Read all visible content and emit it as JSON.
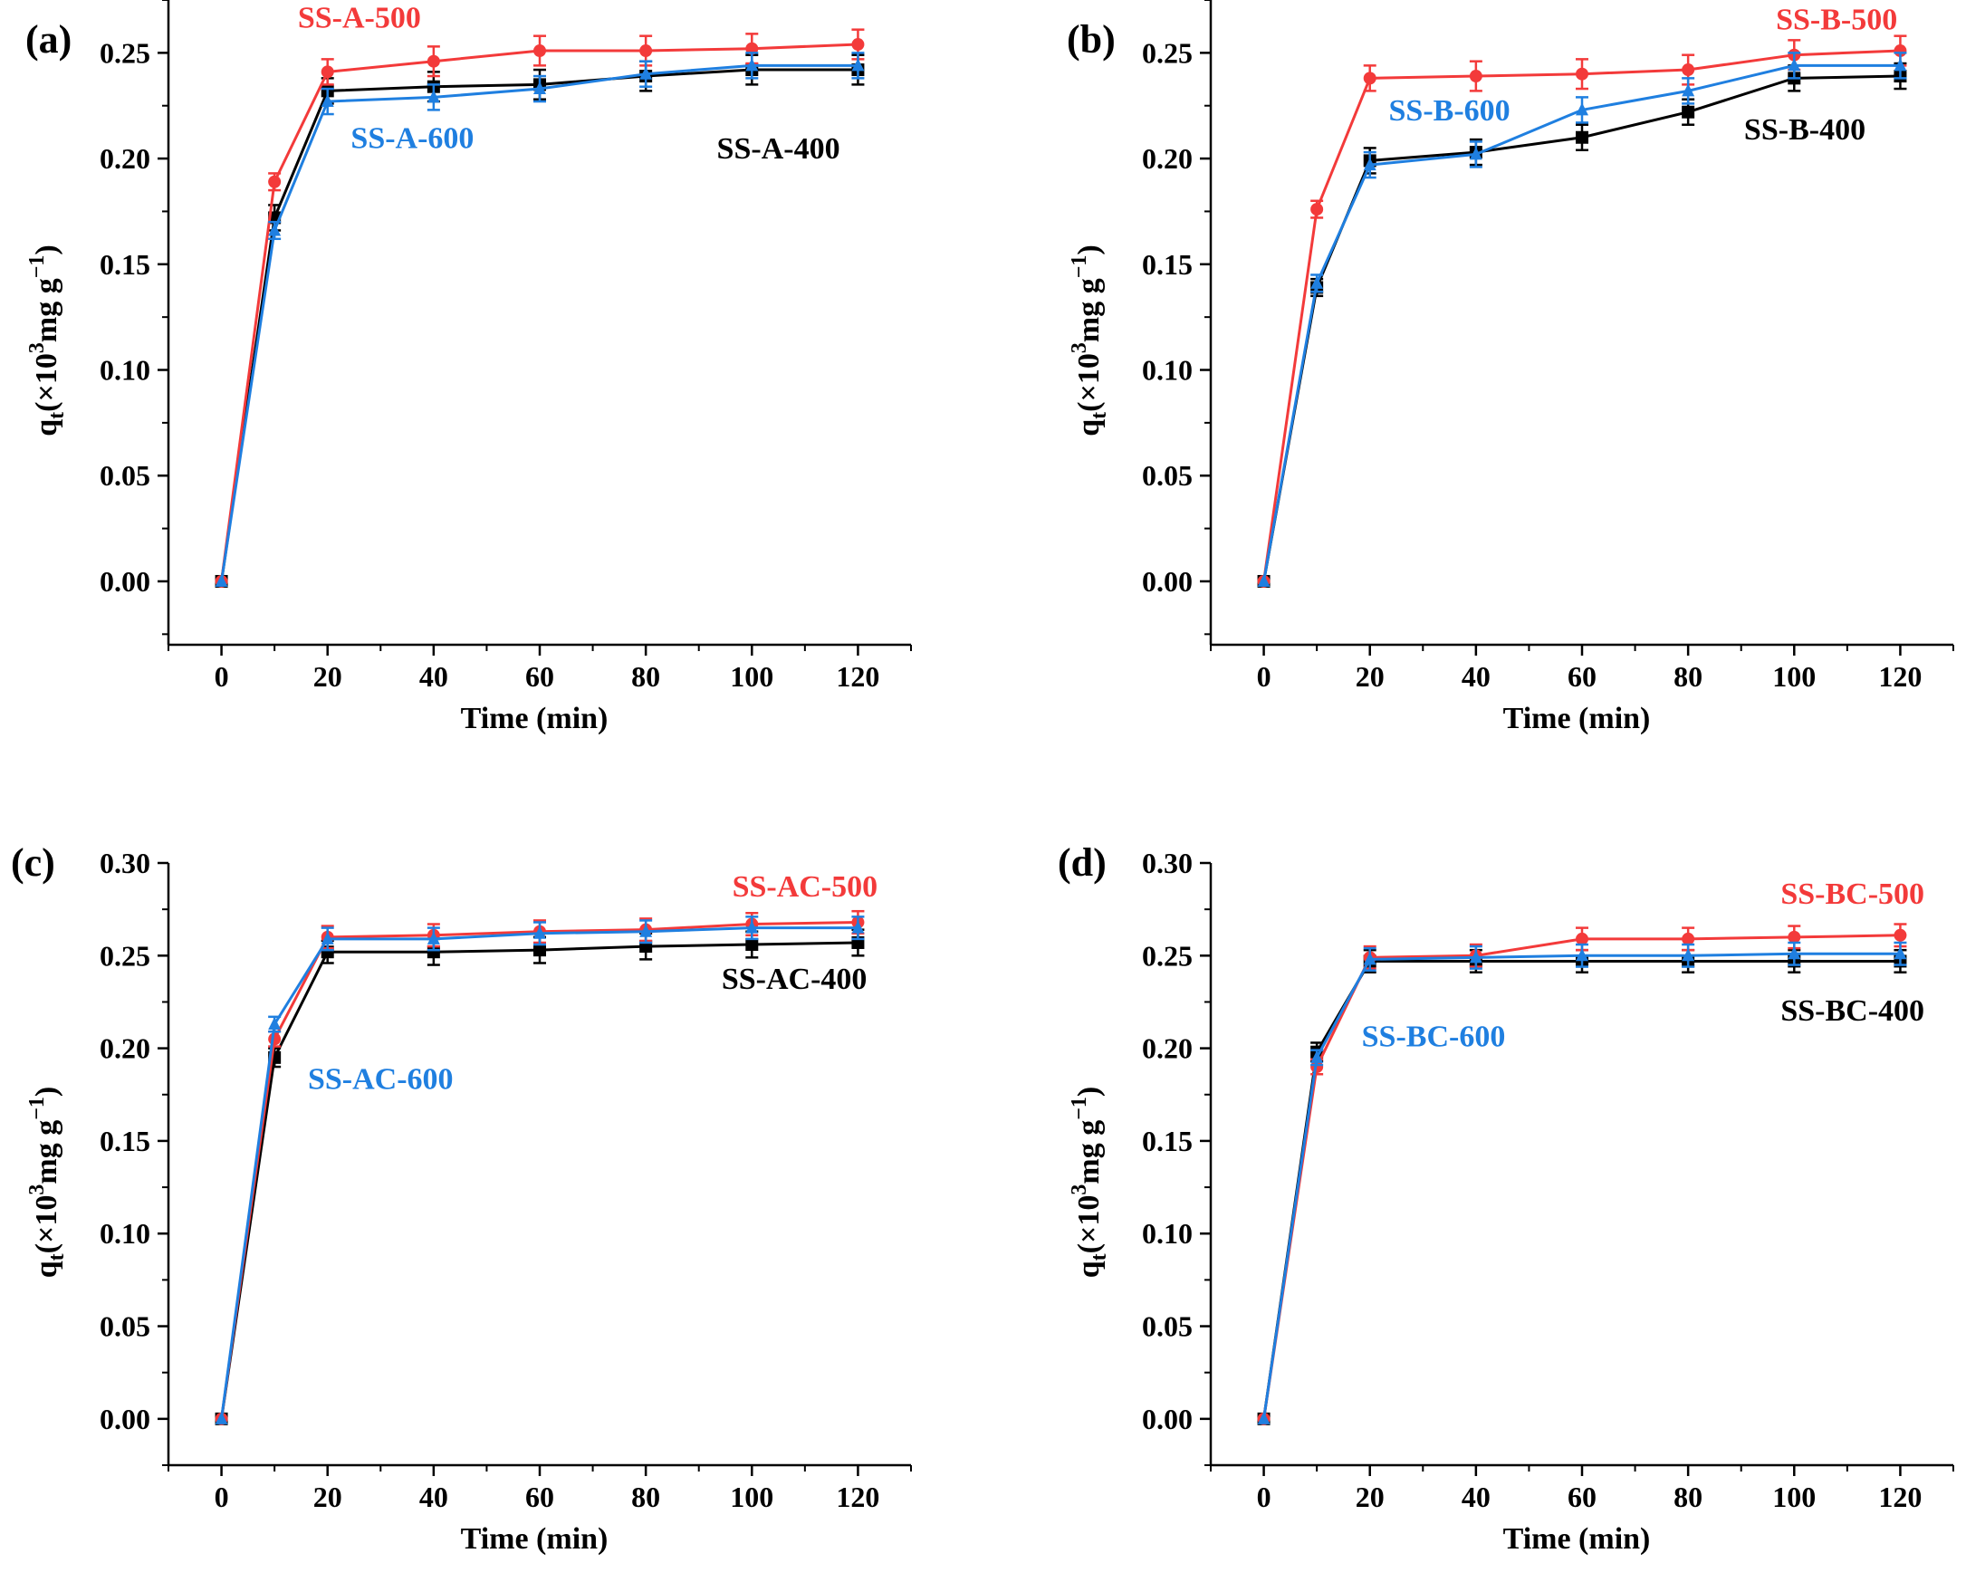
{
  "chart_data": [
    {
      "type": "line",
      "panel_label": "(a)",
      "xlabel": "Time (min)",
      "ylabel": "q",
      "ylabel_sub": "t",
      "ylabel_unit": "(×10",
      "ylabel_sup": "3",
      "ylabel_rest": "mg g",
      "ylabel_sup2": "−1",
      "ylabel_close": ")",
      "xlim": [
        -10,
        130
      ],
      "ylim": [
        -0.03,
        0.275
      ],
      "xticks": [
        "0",
        "20",
        "40",
        "60",
        "80",
        "100",
        "120"
      ],
      "xtick_values": [
        0,
        20,
        40,
        60,
        80,
        100,
        120
      ],
      "yticks": [
        "0.00",
        "0.05",
        "0.10",
        "0.15",
        "0.20",
        "0.25"
      ],
      "ytick_values": [
        0,
        0.05,
        0.1,
        0.15,
        0.2,
        0.25
      ],
      "x": [
        0,
        10,
        20,
        40,
        60,
        80,
        100,
        120
      ],
      "series": [
        {
          "name": "SS-A-400",
          "color": "#000000",
          "marker": "square",
          "values": [
            0,
            0.172,
            0.232,
            0.234,
            0.235,
            0.239,
            0.242,
            0.242
          ],
          "errors": [
            0,
            0.006,
            0.006,
            0.007,
            0.007,
            0.007,
            0.007,
            0.007
          ],
          "label_pos": [
            105,
            0.2
          ]
        },
        {
          "name": "SS-A-500",
          "color": "#f33a3a",
          "marker": "circle",
          "values": [
            0,
            0.189,
            0.241,
            0.246,
            0.251,
            0.251,
            0.252,
            0.254
          ],
          "errors": [
            0,
            0.004,
            0.006,
            0.007,
            0.007,
            0.007,
            0.007,
            0.007
          ],
          "label_pos": [
            26,
            0.262
          ]
        },
        {
          "name": "SS-A-600",
          "color": "#1f7fe0",
          "marker": "triangle",
          "values": [
            0,
            0.166,
            0.227,
            0.229,
            0.233,
            0.24,
            0.244,
            0.244
          ],
          "errors": [
            0,
            0.004,
            0.006,
            0.006,
            0.006,
            0.006,
            0.006,
            0.006
          ],
          "label_pos": [
            36,
            0.205
          ]
        }
      ]
    },
    {
      "type": "line",
      "panel_label": "(b)",
      "xlabel": "Time (min)",
      "ylabel": "q",
      "ylabel_sub": "t",
      "ylabel_unit": "(×10",
      "ylabel_sup": "3",
      "ylabel_rest": "mg g",
      "ylabel_sup2": "−1",
      "ylabel_close": ")",
      "xlim": [
        -10,
        130
      ],
      "ylim": [
        -0.03,
        0.275
      ],
      "xticks": [
        "0",
        "20",
        "40",
        "60",
        "80",
        "100",
        "120"
      ],
      "xtick_values": [
        0,
        20,
        40,
        60,
        80,
        100,
        120
      ],
      "yticks": [
        "0.00",
        "0.05",
        "0.10",
        "0.15",
        "0.20",
        "0.25"
      ],
      "ytick_values": [
        0,
        0.05,
        0.1,
        0.15,
        0.2,
        0.25
      ],
      "x": [
        0,
        10,
        20,
        40,
        60,
        80,
        100,
        120
      ],
      "series": [
        {
          "name": "SS-B-400",
          "color": "#000000",
          "marker": "square",
          "values": [
            0,
            0.139,
            0.199,
            0.203,
            0.21,
            0.222,
            0.238,
            0.239
          ],
          "errors": [
            0,
            0.004,
            0.006,
            0.006,
            0.006,
            0.006,
            0.006,
            0.006
          ],
          "label_pos": [
            102,
            0.209
          ]
        },
        {
          "name": "SS-B-500",
          "color": "#f33a3a",
          "marker": "circle",
          "values": [
            0,
            0.176,
            0.238,
            0.239,
            0.24,
            0.242,
            0.249,
            0.251
          ],
          "errors": [
            0,
            0.004,
            0.006,
            0.007,
            0.007,
            0.007,
            0.007,
            0.007
          ],
          "label_pos": [
            108,
            0.261
          ]
        },
        {
          "name": "SS-B-600",
          "color": "#1f7fe0",
          "marker": "triangle",
          "values": [
            0,
            0.141,
            0.197,
            0.202,
            0.223,
            0.232,
            0.244,
            0.244
          ],
          "errors": [
            0,
            0.004,
            0.006,
            0.006,
            0.006,
            0.006,
            0.006,
            0.006
          ],
          "label_pos": [
            35,
            0.218
          ]
        }
      ]
    },
    {
      "type": "line",
      "panel_label": "(c)",
      "xlabel": "Time (min)",
      "ylabel": "q",
      "ylabel_sub": "t",
      "ylabel_unit": "(×10",
      "ylabel_sup": "3",
      "ylabel_rest": "mg g",
      "ylabel_sup2": "−1",
      "ylabel_close": ")",
      "xlim": [
        -10,
        130
      ],
      "ylim": [
        -0.025,
        0.3
      ],
      "xticks": [
        "0",
        "20",
        "40",
        "60",
        "80",
        "100",
        "120"
      ],
      "xtick_values": [
        0,
        20,
        40,
        60,
        80,
        100,
        120
      ],
      "yticks": [
        "0.00",
        "0.05",
        "0.10",
        "0.15",
        "0.20",
        "0.25",
        "0.30"
      ],
      "ytick_values": [
        0,
        0.05,
        0.1,
        0.15,
        0.2,
        0.25,
        0.3
      ],
      "x": [
        0,
        10,
        20,
        40,
        60,
        80,
        100,
        120
      ],
      "series": [
        {
          "name": "SS-AC-400",
          "color": "#000000",
          "marker": "square",
          "values": [
            0,
            0.195,
            0.252,
            0.252,
            0.253,
            0.255,
            0.256,
            0.257
          ],
          "errors": [
            0,
            0.005,
            0.006,
            0.007,
            0.007,
            0.007,
            0.007,
            0.007
          ],
          "label_pos": [
            108,
            0.232
          ]
        },
        {
          "name": "SS-AC-500",
          "color": "#f33a3a",
          "marker": "circle",
          "values": [
            0,
            0.205,
            0.26,
            0.261,
            0.263,
            0.264,
            0.267,
            0.268
          ],
          "errors": [
            0,
            0.004,
            0.006,
            0.006,
            0.006,
            0.006,
            0.006,
            0.006
          ],
          "label_pos": [
            110,
            0.282
          ]
        },
        {
          "name": "SS-AC-600",
          "color": "#1f7fe0",
          "marker": "triangle",
          "values": [
            0,
            0.213,
            0.259,
            0.259,
            0.262,
            0.263,
            0.265,
            0.265
          ],
          "errors": [
            0,
            0.004,
            0.006,
            0.006,
            0.006,
            0.006,
            0.006,
            0.006
          ],
          "label_pos": [
            30,
            0.178
          ]
        }
      ]
    },
    {
      "type": "line",
      "panel_label": "(d)",
      "xlabel": "Time (min)",
      "ylabel": "q",
      "ylabel_sub": "t",
      "ylabel_unit": "(×10",
      "ylabel_sup": "3",
      "ylabel_rest": "mg g",
      "ylabel_sup2": "−1",
      "ylabel_close": ")",
      "xlim": [
        -10,
        130
      ],
      "ylim": [
        -0.025,
        0.3
      ],
      "xticks": [
        "0",
        "20",
        "40",
        "60",
        "80",
        "100",
        "120"
      ],
      "xtick_values": [
        0,
        20,
        40,
        60,
        80,
        100,
        120
      ],
      "yticks": [
        "0.00",
        "0.05",
        "0.10",
        "0.15",
        "0.20",
        "0.25",
        "0.30"
      ],
      "ytick_values": [
        0,
        0.05,
        0.1,
        0.15,
        0.2,
        0.25,
        0.3
      ],
      "x": [
        0,
        10,
        20,
        40,
        60,
        80,
        100,
        120
      ],
      "series": [
        {
          "name": "SS-BC-400",
          "color": "#000000",
          "marker": "square",
          "values": [
            0,
            0.198,
            0.247,
            0.247,
            0.247,
            0.247,
            0.247,
            0.247
          ],
          "errors": [
            0,
            0.005,
            0.006,
            0.006,
            0.006,
            0.006,
            0.006,
            0.006
          ],
          "label_pos": [
            111,
            0.215
          ]
        },
        {
          "name": "SS-BC-500",
          "color": "#f33a3a",
          "marker": "circle",
          "values": [
            0,
            0.19,
            0.249,
            0.25,
            0.259,
            0.259,
            0.26,
            0.261
          ],
          "errors": [
            0,
            0.004,
            0.006,
            0.006,
            0.006,
            0.006,
            0.006,
            0.006
          ],
          "label_pos": [
            111,
            0.278
          ]
        },
        {
          "name": "SS-BC-600",
          "color": "#1f7fe0",
          "marker": "triangle",
          "values": [
            0,
            0.195,
            0.248,
            0.249,
            0.25,
            0.25,
            0.251,
            0.251
          ],
          "errors": [
            0,
            0.004,
            0.006,
            0.006,
            0.006,
            0.006,
            0.006,
            0.006
          ],
          "label_pos": [
            32,
            0.201
          ]
        }
      ]
    }
  ]
}
